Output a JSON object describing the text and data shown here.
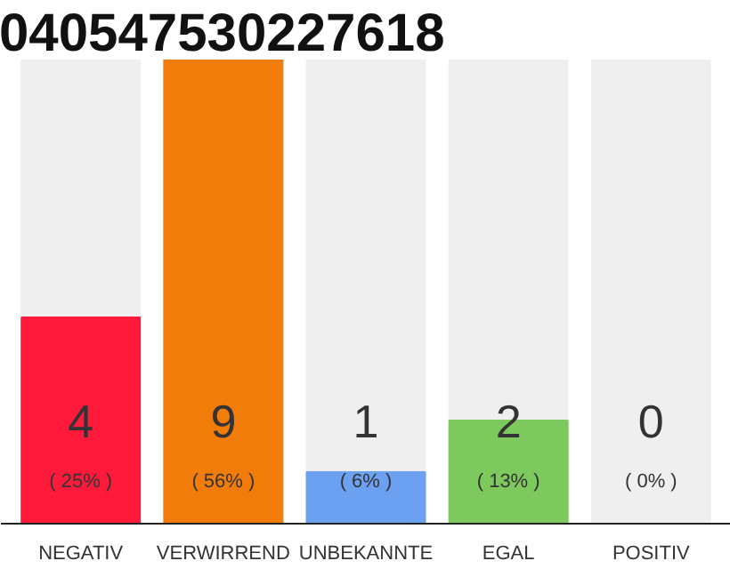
{
  "chart_data": {
    "type": "bar",
    "title": "040547530227618",
    "categories": [
      "NEGATIV",
      "VERWIRREND",
      "UNBEKANNTE",
      "EGAL",
      "POSITIV"
    ],
    "values": [
      4,
      9,
      1,
      2,
      0
    ],
    "colors": [
      "#ff1a3c",
      "#f27c0a",
      "#6ca0f0",
      "#7dc95e",
      "#cccccc"
    ],
    "data_labels": true,
    "annotations": [
      "( 25% )",
      "( 56% )",
      "( 6% )",
      "( 13% )",
      "( 0% )"
    ],
    "grid": false
  }
}
